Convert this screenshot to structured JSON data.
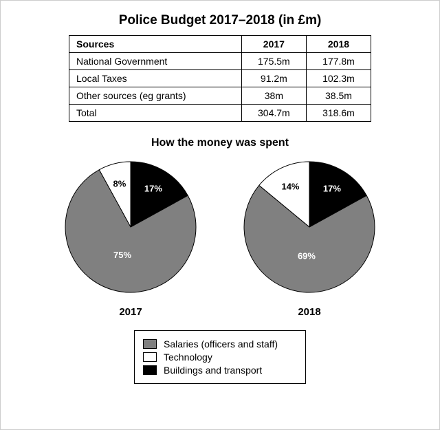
{
  "title": "Police Budget 2017–2018 (in £m)",
  "table": {
    "header": {
      "sources": "Sources",
      "y2017": "2017",
      "y2018": "2018"
    },
    "rows": [
      {
        "label": "National Government",
        "y2017": "175.5m",
        "y2018": "177.8m"
      },
      {
        "label": "Local Taxes",
        "y2017": "91.2m",
        "y2018": "102.3m"
      },
      {
        "label": "Other sources (eg grants)",
        "y2017": "38m",
        "y2018": "38.5m"
      },
      {
        "label": "Total",
        "y2017": "304.7m",
        "y2018": "318.6m"
      }
    ]
  },
  "subtitle": "How the money was spent",
  "colors": {
    "salaries": "#808080",
    "technology": "#ffffff",
    "buildings": "#000000",
    "stroke": "#000000"
  },
  "pies": {
    "p2017": {
      "label": "2017",
      "slices": {
        "salaries": {
          "pct": 75,
          "text": "75%"
        },
        "technology": {
          "pct": 8,
          "text": "8%"
        },
        "buildings": {
          "pct": 17,
          "text": "17%"
        }
      }
    },
    "p2018": {
      "label": "2018",
      "slices": {
        "salaries": {
          "pct": 69,
          "text": "69%"
        },
        "technology": {
          "pct": 14,
          "text": "14%"
        },
        "buildings": {
          "pct": 17,
          "text": "17%"
        }
      }
    }
  },
  "legend": {
    "salaries": "Salaries (officers and staff)",
    "technology": "Technology",
    "buildings": "Buildings and transport"
  },
  "chart": {
    "radius": 95,
    "svgSize": 210
  }
}
